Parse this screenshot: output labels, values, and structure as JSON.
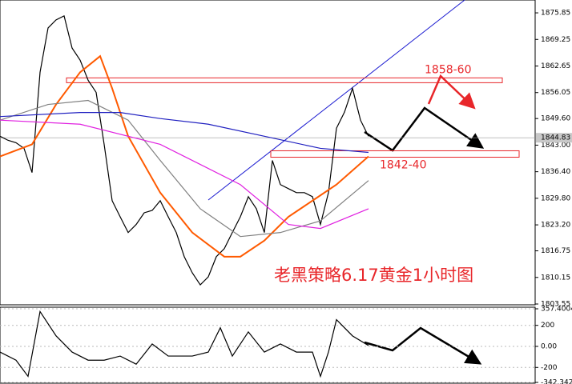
{
  "chart_data": [
    {
      "type": "line",
      "title": "老黑策略6.17黄金1小时图",
      "ylim": [
        1803.35,
        1879.04
      ],
      "yticks": [
        1875.85,
        1869.25,
        1862.65,
        1856.05,
        {
          "value": 1849.6,
          "label": "1849.60"
        },
        {
          "value": 1843.0,
          "label": "1843.00"
        },
        {
          "value": 1836.4,
          "label": "1836.40"
        },
        {
          "value": 1829.8,
          "label": "1829.80"
        },
        {
          "value": 1823.2,
          "label": "1823.20"
        },
        1816.75,
        1810.15,
        1803.55
      ],
      "current_price": 1844.83,
      "series": [
        {
          "color": "#000000",
          "x": [
            0,
            1,
            2,
            3,
            4,
            5,
            6,
            7,
            8,
            9,
            10,
            11,
            12,
            13,
            14,
            15,
            16,
            17,
            18,
            19,
            20,
            21,
            22,
            23,
            24,
            25,
            26,
            27,
            28,
            29,
            30,
            31,
            32,
            33,
            34,
            35,
            36,
            37,
            38,
            39,
            40,
            41,
            42,
            43,
            44,
            45,
            46
          ],
          "values": [
            1845.2,
            1844.2,
            1843.6,
            1842.2,
            1836.2,
            1861.1,
            1872.1,
            1874.1,
            1875.1,
            1867.1,
            1864.1,
            1859.1,
            1856.1,
            1843.2,
            1829.2,
            1825.2,
            1821.3,
            1823.3,
            1826.2,
            1826.8,
            1829.2,
            1825.2,
            1821.3,
            1815.3,
            1811.3,
            1808.3,
            1810.3,
            1815.3,
            1817.3,
            1821.3,
            1825.2,
            1830.2,
            1827.2,
            1821.3,
            1839.2,
            1833.2,
            1832.2,
            1831.2,
            1831.2,
            1830.2,
            1823.3,
            1831.2,
            1847.2,
            1851.2,
            1857.1,
            1849.2,
            1845.2
          ]
        },
        {
          "color": "#ff5a00",
          "x": [
            0,
            4,
            7,
            10,
            12.5,
            14,
            16,
            20,
            24,
            28,
            30,
            33,
            36,
            39,
            42,
            46
          ],
          "values": [
            1840.2,
            1843.2,
            1853.1,
            1861.1,
            1865.1,
            1857.1,
            1845.2,
            1831.2,
            1821.3,
            1815.3,
            1815.3,
            1819.3,
            1825.2,
            1829.2,
            1833.2,
            1840.2
          ]
        },
        {
          "color": "#808080",
          "x": [
            0,
            6,
            11,
            16,
            20,
            25,
            30,
            35,
            40,
            46
          ],
          "values": [
            1849.2,
            1853.1,
            1854.1,
            1849.2,
            1839.2,
            1827.2,
            1820.3,
            1821.3,
            1824.2,
            1834.2
          ]
        },
        {
          "color": "#2020c0",
          "x": [
            0,
            10,
            15,
            20,
            26,
            33,
            40,
            46
          ],
          "values": [
            1850.1,
            1851.1,
            1851.1,
            1849.6,
            1848.2,
            1845.2,
            1842.2,
            1841.2
          ]
        },
        {
          "color": "#e020e0",
          "x": [
            0,
            10,
            20,
            30,
            36,
            40,
            46
          ],
          "values": [
            1849.2,
            1848.2,
            1843.2,
            1833.2,
            1823.3,
            1822.3,
            1827.2
          ]
        }
      ],
      "zones": [
        {
          "label": "1858-60",
          "range": [
            1858.5,
            1859.7
          ]
        },
        {
          "label": "1842-40",
          "range": [
            1840.0,
            1841.6
          ]
        }
      ]
    },
    {
      "type": "line",
      "ylim": [
        -342.342,
        357.4004
      ],
      "yticks": [
        357.4004,
        200,
        {
          "value": 0,
          "label": "0.00"
        },
        -200,
        -342.342
      ],
      "series": [
        {
          "color": "#000000",
          "x": [
            0,
            2,
            3.5,
            5,
            7,
            9,
            11,
            13,
            15,
            17,
            19,
            21,
            24,
            26,
            27.5,
            29,
            31,
            33,
            35,
            37,
            39,
            40,
            41,
            42,
            44,
            46
          ],
          "values": [
            -54,
            -131,
            -285,
            331,
            100,
            -54,
            -131,
            -131,
            -92,
            -169,
            23,
            -92,
            -92,
            -54,
            177,
            -92,
            138,
            -54,
            23,
            -54,
            -54,
            -285,
            -54,
            254,
            100,
            8
          ]
        }
      ]
    }
  ]
}
